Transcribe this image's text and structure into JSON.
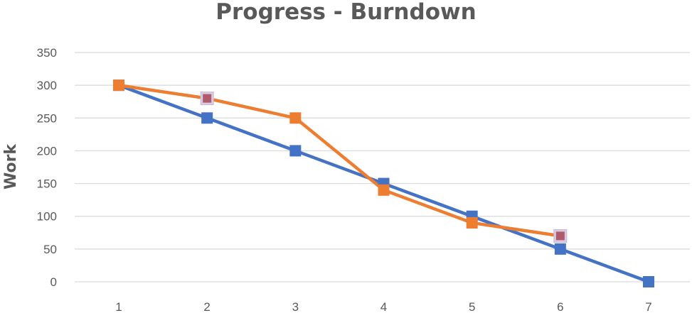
{
  "chart_data": {
    "type": "line",
    "title": "Progress - Burndown",
    "xlabel": "",
    "ylabel": "Work",
    "categories": [
      "1",
      "2",
      "3",
      "4",
      "5",
      "6",
      "7"
    ],
    "ylim": [
      0,
      350
    ],
    "yticks": [
      0,
      50,
      100,
      150,
      200,
      250,
      300,
      350
    ],
    "grid": true,
    "legend": "none",
    "series": [
      {
        "color": "#4472c4",
        "marker": "square",
        "values": [
          300,
          250,
          200,
          150,
          100,
          50,
          0
        ]
      },
      {
        "color": "#ed7d31",
        "marker": "square",
        "values": [
          300,
          280,
          250,
          140,
          90,
          70,
          null
        ]
      }
    ],
    "highlight_color": "#b05a6e",
    "highlighted_points": [
      {
        "series": 1,
        "index": 1
      },
      {
        "series": 1,
        "index": 5
      }
    ]
  }
}
